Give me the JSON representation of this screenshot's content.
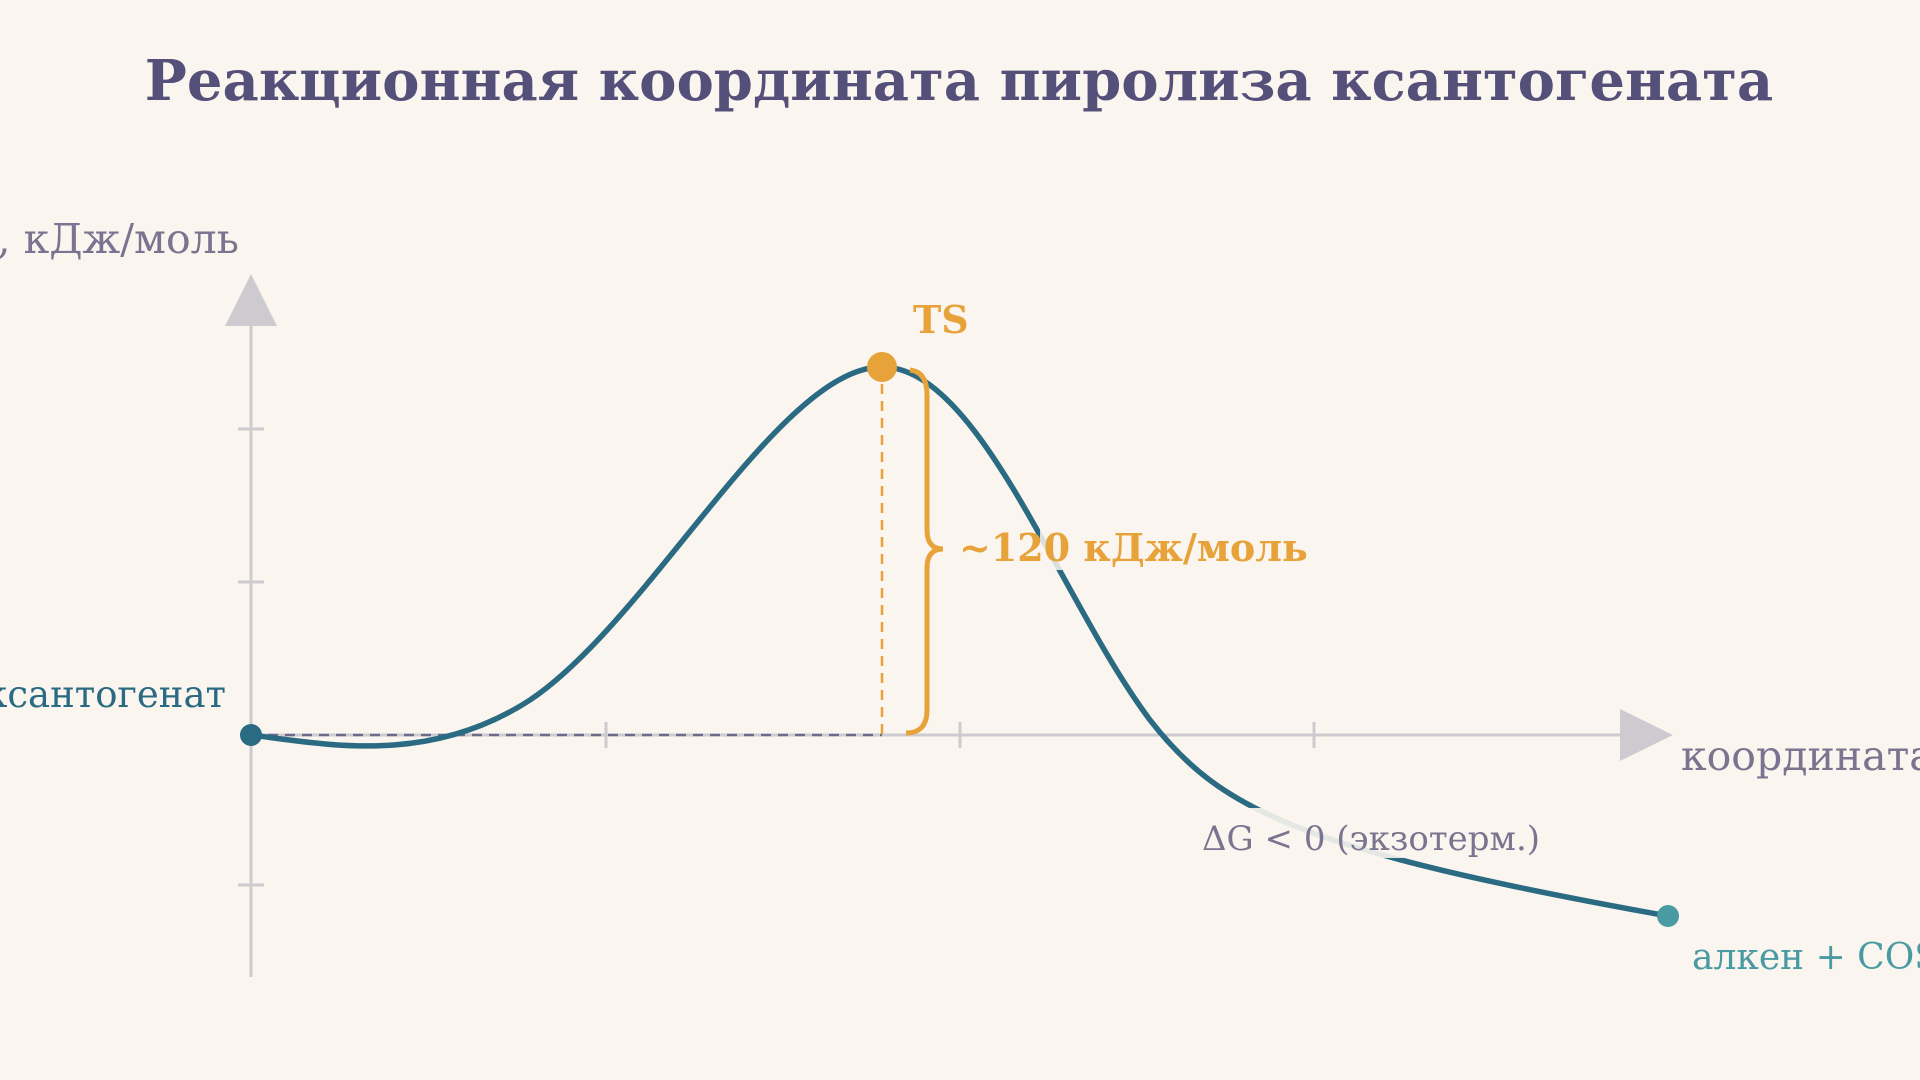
{
  "title": "Реакционная координата пиролиза ксантогената",
  "y_axis_label": ", кДж/моль",
  "x_axis_label": "координата",
  "reactant_label": "ксантогенат",
  "ts_label": "TS",
  "barrier_label": "~120 кДж/моль",
  "delta_label": "ΔG < 0 (экзотерм.)",
  "product_label": "алкен + COS +"
}
